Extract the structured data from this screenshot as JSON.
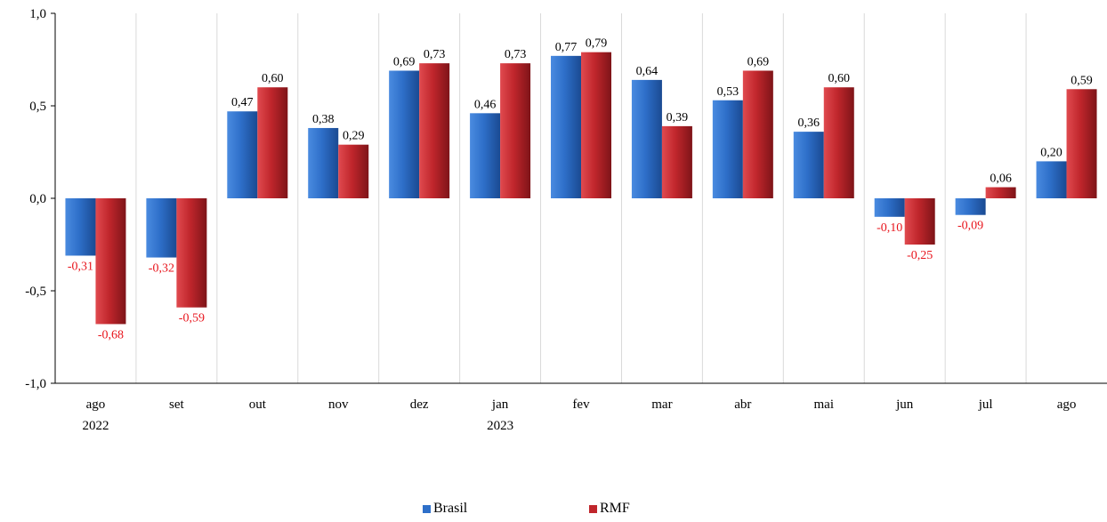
{
  "chart_data": {
    "type": "bar",
    "categories": [
      {
        "label": "ago",
        "sub": "2022"
      },
      {
        "label": "set",
        "sub": ""
      },
      {
        "label": "out",
        "sub": ""
      },
      {
        "label": "nov",
        "sub": ""
      },
      {
        "label": "dez",
        "sub": ""
      },
      {
        "label": "jan",
        "sub": "2023"
      },
      {
        "label": "fev",
        "sub": ""
      },
      {
        "label": "mar",
        "sub": ""
      },
      {
        "label": "abr",
        "sub": ""
      },
      {
        "label": "mai",
        "sub": ""
      },
      {
        "label": "jun",
        "sub": ""
      },
      {
        "label": "jul",
        "sub": ""
      },
      {
        "label": "ago",
        "sub": ""
      }
    ],
    "series": [
      {
        "name": "Brasil",
        "color": "#2e6fc9",
        "values": [
          -0.31,
          -0.32,
          0.47,
          0.38,
          0.69,
          0.46,
          0.77,
          0.64,
          0.53,
          0.36,
          -0.1,
          -0.09,
          0.2
        ],
        "labels": [
          "-0,31",
          "-0,32",
          "0,47",
          "0,38",
          "0,69",
          "0,46",
          "0,77",
          "0,64",
          "0,53",
          "0,36",
          "-0,10",
          "-0,09",
          "0,20"
        ]
      },
      {
        "name": "RMF",
        "color": "#c0262c",
        "values": [
          -0.68,
          -0.59,
          0.6,
          0.29,
          0.73,
          0.73,
          0.79,
          0.39,
          0.69,
          0.6,
          -0.25,
          0.06,
          0.59
        ],
        "labels": [
          "-0,68",
          "-0,59",
          "0,60",
          "0,29",
          "0,73",
          "0,73",
          "0,79",
          "0,39",
          "0,69",
          "0,60",
          "-0,25",
          "0,06",
          "0,59"
        ]
      }
    ],
    "yticks": [
      "1,0",
      "0,5",
      "0,0",
      "-0,5",
      "-1,0"
    ],
    "ytick_values": [
      1.0,
      0.5,
      0.0,
      -0.5,
      -1.0
    ],
    "ylim": [
      -1.0,
      1.0
    ],
    "negative_label_color": "#e8141c",
    "grid": "vertical",
    "legend_position": "bottom-center"
  }
}
